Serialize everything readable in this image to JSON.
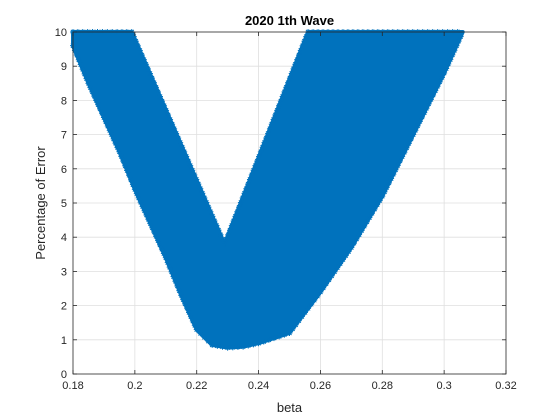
{
  "chart_data": {
    "type": "area",
    "title": "2020 1th Wave",
    "xlabel": "beta",
    "ylabel": "Percentage of Error",
    "xlim": [
      0.18,
      0.32
    ],
    "ylim": [
      0,
      10
    ],
    "xticks": [
      0.18,
      0.2,
      0.22,
      0.24,
      0.26,
      0.28,
      0.3,
      0.32
    ],
    "xtick_labels": [
      "0.18",
      "0.2",
      "0.22",
      "0.24",
      "0.26",
      "0.28",
      "0.3",
      "0.32"
    ],
    "yticks": [
      0,
      1,
      2,
      3,
      4,
      5,
      6,
      7,
      8,
      9,
      10
    ],
    "ytick_labels": [
      "0",
      "1",
      "2",
      "3",
      "4",
      "5",
      "6",
      "7",
      "8",
      "9",
      "10"
    ],
    "grid": true,
    "marker": "asterisk",
    "color": "#0072BD",
    "series": [
      {
        "region_upper_boundary": [
          {
            "x": 0.18,
            "y": 10
          },
          {
            "x": 0.199,
            "y": 10
          },
          {
            "x": 0.229,
            "y": 3.8
          },
          {
            "x": 0.256,
            "y": 10
          },
          {
            "x": 0.306,
            "y": 10
          }
        ],
        "region_lower_boundary": [
          {
            "x": 0.18,
            "y": 9.6
          },
          {
            "x": 0.185,
            "y": 8.5
          },
          {
            "x": 0.19,
            "y": 7.5
          },
          {
            "x": 0.195,
            "y": 6.5
          },
          {
            "x": 0.2,
            "y": 5.4
          },
          {
            "x": 0.205,
            "y": 4.4
          },
          {
            "x": 0.21,
            "y": 3.4
          },
          {
            "x": 0.215,
            "y": 2.3
          },
          {
            "x": 0.22,
            "y": 1.3
          },
          {
            "x": 0.225,
            "y": 0.85
          },
          {
            "x": 0.23,
            "y": 0.77
          },
          {
            "x": 0.235,
            "y": 0.8
          },
          {
            "x": 0.24,
            "y": 0.9
          },
          {
            "x": 0.245,
            "y": 1.05
          },
          {
            "x": 0.25,
            "y": 1.2
          },
          {
            "x": 0.26,
            "y": 2.4
          },
          {
            "x": 0.27,
            "y": 3.7
          },
          {
            "x": 0.28,
            "y": 5.2
          },
          {
            "x": 0.29,
            "y": 7.0
          },
          {
            "x": 0.3,
            "y": 8.8
          },
          {
            "x": 0.306,
            "y": 10
          }
        ]
      }
    ]
  }
}
